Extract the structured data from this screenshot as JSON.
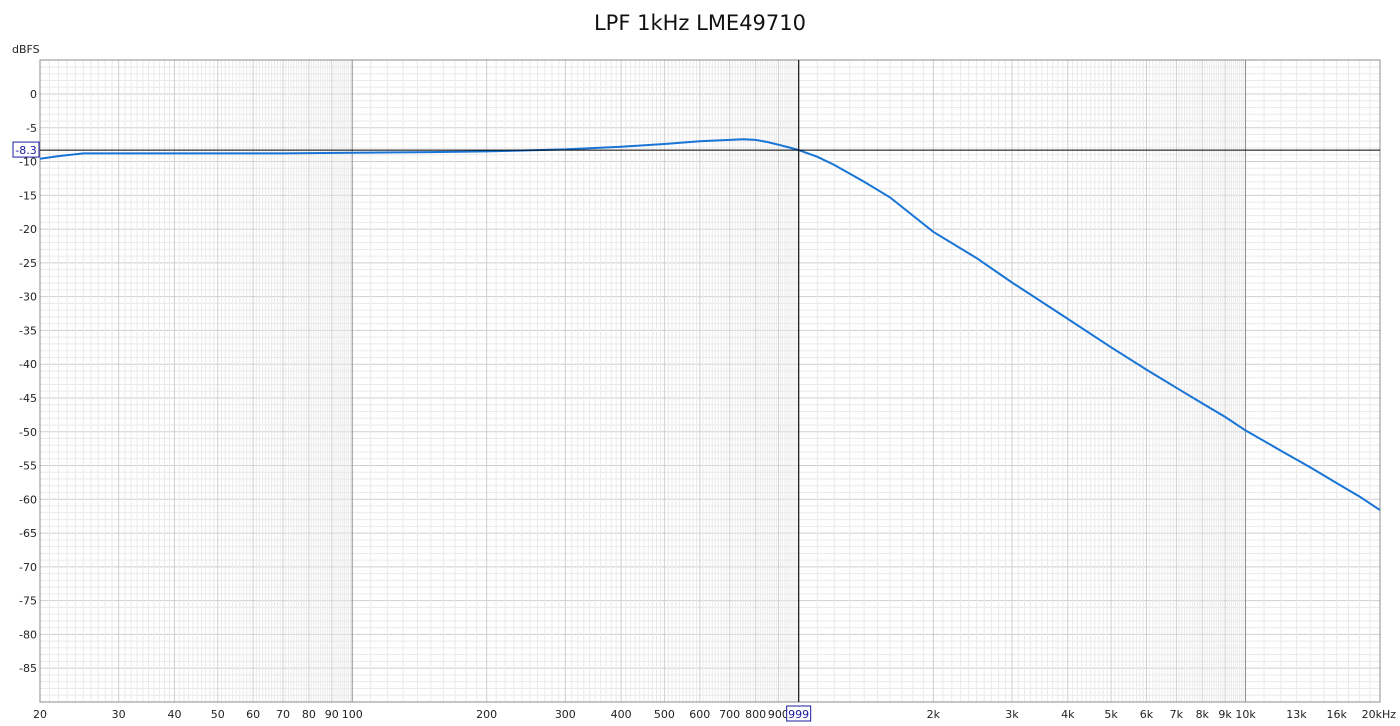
{
  "chart_data": {
    "type": "line",
    "title": "LPF 1kHz LME49710",
    "ylabel": "dBFS",
    "xscale": "log",
    "xlim": [
      20,
      20000
    ],
    "ylim": [
      -90,
      5
    ],
    "grid": true,
    "y_ticks": [
      0,
      -5,
      -10,
      -15,
      -20,
      -25,
      -30,
      -35,
      -40,
      -45,
      -50,
      -55,
      -60,
      -65,
      -70,
      -75,
      -80,
      -85
    ],
    "y_tick_labels": [
      "0",
      "-5",
      "-10",
      "-15",
      "-20",
      "-25",
      "-30",
      "-35",
      "-40",
      "-45",
      "-50",
      "-55",
      "-60",
      "-65",
      "-70",
      "-75",
      "-80",
      "-85"
    ],
    "x_ticks": [
      20,
      30,
      40,
      50,
      60,
      70,
      80,
      90,
      100,
      200,
      300,
      400,
      500,
      600,
      700,
      800,
      900,
      2000,
      3000,
      4000,
      5000,
      6000,
      7000,
      8000,
      9000,
      10000,
      13000,
      16000,
      20000
    ],
    "x_tick_labels": [
      "20",
      "30",
      "40",
      "50",
      "60",
      "70",
      "80",
      "90",
      "100",
      "200",
      "300",
      "400",
      "500",
      "600",
      "700",
      "800",
      "900",
      "2k",
      "3k",
      "4k",
      "5k",
      "6k",
      "7k",
      "8k",
      "9k",
      "10k",
      "13k",
      "16k",
      "20kHz"
    ],
    "x_tick_muted": [
      false,
      false,
      false,
      false,
      false,
      false,
      false,
      false,
      false,
      false,
      false,
      false,
      false,
      false,
      false,
      false,
      false,
      false,
      false,
      false,
      false,
      false,
      false,
      false,
      false,
      false,
      true,
      true,
      false
    ],
    "series": [
      {
        "color": "#1874d6",
        "x": [
          20,
          22,
          25,
          30,
          40,
          50,
          70,
          100,
          150,
          200,
          300,
          400,
          500,
          600,
          700,
          750,
          800,
          850,
          900,
          950,
          999,
          1100,
          1200,
          1400,
          1600,
          2000,
          2500,
          3000,
          4000,
          5000,
          6000,
          7000,
          8000,
          9000,
          10000,
          12000,
          14000,
          16000,
          18000,
          20000
        ],
        "y": [
          -9.6,
          -9.2,
          -8.8,
          -8.8,
          -8.8,
          -8.8,
          -8.8,
          -8.7,
          -8.6,
          -8.5,
          -8.2,
          -7.8,
          -7.4,
          -7.0,
          -6.8,
          -6.7,
          -6.8,
          -7.1,
          -7.5,
          -7.9,
          -8.3,
          -9.3,
          -10.5,
          -13.0,
          -15.3,
          -20.4,
          -24.3,
          -27.9,
          -33.3,
          -37.5,
          -40.8,
          -43.5,
          -45.8,
          -47.8,
          -49.8,
          -52.8,
          -55.3,
          -57.6,
          -59.6,
          -61.6
        ]
      }
    ],
    "cursor": {
      "x": 999,
      "y": -8.3,
      "x_label": "999",
      "y_label": "-8.3"
    }
  }
}
